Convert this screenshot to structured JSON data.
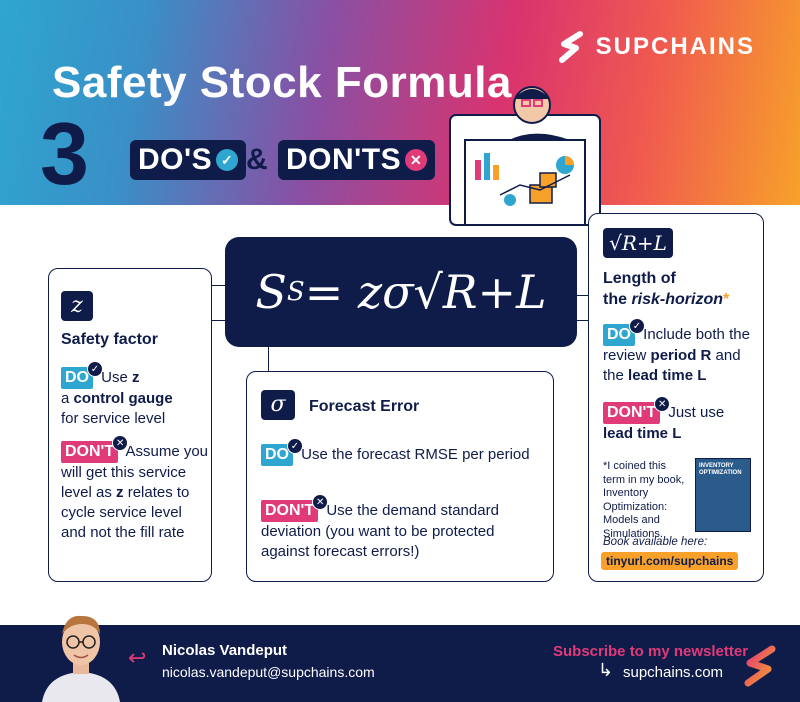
{
  "header": {
    "brand": "SUPCHAINS",
    "title": "Safety Stock Formula",
    "number": "3",
    "dos": "DO'S",
    "amp": "&",
    "donts": "DON'TS",
    "check_glyph": "✓",
    "x_glyph": "✕"
  },
  "formula": "S",
  "formula_sub": "S",
  "formula_rest": " = zσ√R+L",
  "box_z": {
    "symbol": "z",
    "heading": "Safety factor",
    "do_tag": "DO",
    "do_text_1": "Use",
    "do_bold_1": "z",
    "do_text_2": "a",
    "do_bold_2": "control gauge",
    "do_text_3": "for service level",
    "dont_tag": "DON'T",
    "dont_text_1": "Assume you will get this service level as",
    "dont_bold": "z",
    "dont_text_2": "relates to cycle service level and not the fill rate"
  },
  "box_sigma": {
    "symbol": "σ",
    "heading": "Forecast Error",
    "do_tag": "DO",
    "do_text": "Use the forecast RMSE per period",
    "dont_tag": "DON'T",
    "dont_text": "Use the demand standard deviation (you want to be protected against forecast errors!)"
  },
  "box_rl": {
    "symbol": "√R+L",
    "heading_1": "Length of",
    "heading_2": "the",
    "heading_italic": "risk-horizon",
    "heading_star": "*",
    "do_tag": "DO",
    "do_text_1": "Include both the review",
    "do_bold_1": "period R",
    "do_text_2": "and the",
    "do_bold_2": "lead time L",
    "dont_tag": "DON'T",
    "dont_text": "Just use",
    "dont_bold": "lead time L",
    "footnote": "*I coined this term in my book, Inventory Optimization: Models and Simulations.",
    "book_title": "INVENTORY OPTIMIZATION",
    "available": "Book available here:",
    "link": "tinyurl.com/supchains"
  },
  "footer": {
    "name": "Nicolas Vandeput",
    "email": "nicolas.vandeput@supchains.com",
    "subscribe": "Subscribe to my newsletter",
    "sublink": "supchains.com"
  },
  "colors": {
    "navy": "#0f1c4a",
    "blue": "#2ea6cf",
    "pink": "#e03a79",
    "orange": "#f7a12a"
  }
}
